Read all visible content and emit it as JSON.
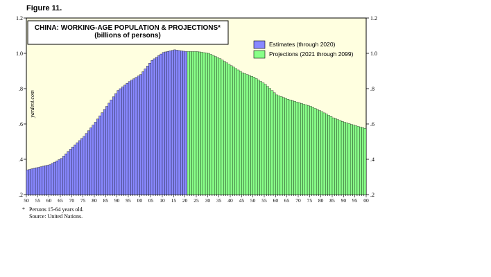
{
  "figure_label": "Figure 11.",
  "watermark": "yardeni.com",
  "footnote": {
    "marker": "*",
    "note": "Persons 15-64 years old.",
    "source": "Source: United Nations."
  },
  "colors": {
    "plot_background": "#ffffe0",
    "estimates_fill": "#8888ff",
    "projections_fill": "#88ff88",
    "bar_stroke": "#000000"
  },
  "chart_data": {
    "type": "bar",
    "title": "CHINA: WORKING-AGE POPULATION & PROJECTIONS*",
    "subtitle": "(billions of persons)",
    "xlabel": "",
    "ylabel": "",
    "ylim": [
      0.2,
      1.2
    ],
    "y_ticks": [
      0.2,
      0.4,
      0.6,
      0.8,
      1.0,
      1.2
    ],
    "y_tick_labels": [
      ".2",
      ".4",
      ".6",
      ".8",
      "1.0",
      "1.2"
    ],
    "x_tick_labels": [
      "50",
      "55",
      "60",
      "65",
      "70",
      "75",
      "80",
      "85",
      "90",
      "95",
      "00",
      "05",
      "10",
      "15",
      "20",
      "25",
      "30",
      "35",
      "40",
      "45",
      "50",
      "55",
      "60",
      "65",
      "70",
      "75",
      "80",
      "85",
      "90",
      "95",
      "00"
    ],
    "x_start_year": 1950,
    "x_end_year": 2100,
    "x_tick_step_years": 5,
    "grid": false,
    "legend_position": "top-right",
    "series": [
      {
        "name": "Estimates (through 2020)",
        "color": "#8888ff",
        "x": [
          1950,
          1955,
          1960,
          1965,
          1970,
          1975,
          1980,
          1985,
          1990,
          1995,
          2000,
          2005,
          2010,
          2015,
          2020
        ],
        "values": [
          0.34,
          0.355,
          0.37,
          0.405,
          0.47,
          0.53,
          0.61,
          0.7,
          0.79,
          0.84,
          0.88,
          0.96,
          1.005,
          1.02,
          1.01
        ]
      },
      {
        "name": "Projections (2021 through 2099)",
        "color": "#88ff88",
        "x": [
          2021,
          2025,
          2030,
          2035,
          2040,
          2045,
          2050,
          2055,
          2060,
          2065,
          2070,
          2075,
          2080,
          2085,
          2090,
          2095,
          2099
        ],
        "values": [
          1.01,
          1.01,
          1.0,
          0.97,
          0.93,
          0.89,
          0.865,
          0.825,
          0.765,
          0.74,
          0.72,
          0.7,
          0.67,
          0.635,
          0.61,
          0.59,
          0.575
        ]
      }
    ]
  }
}
